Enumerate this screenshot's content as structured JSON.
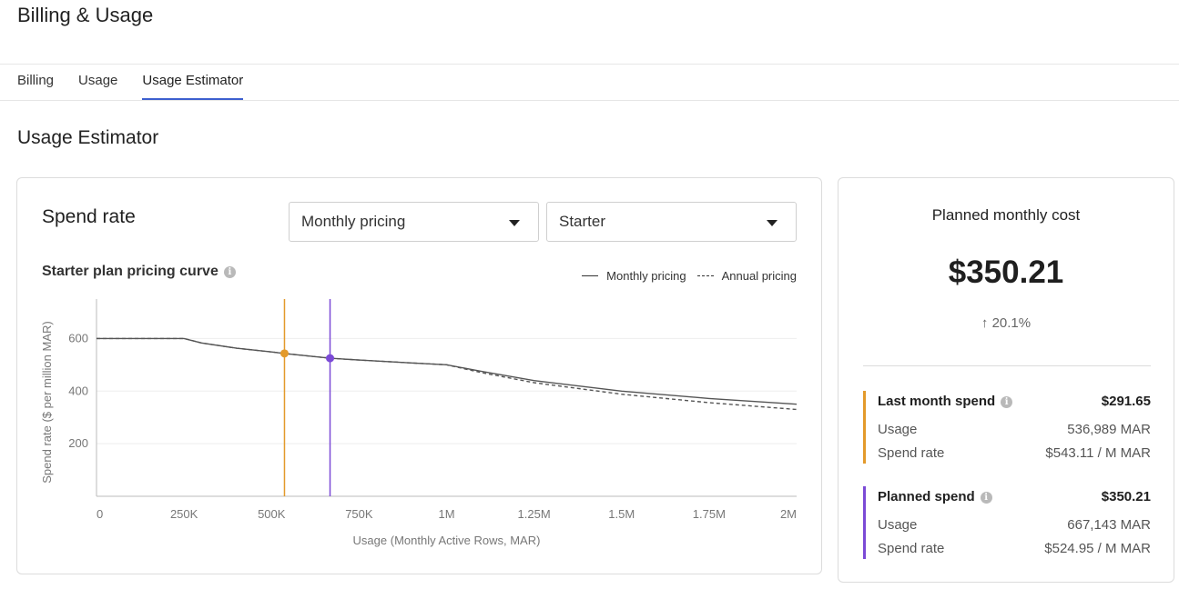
{
  "page": {
    "title": "Billing & Usage"
  },
  "tabs": [
    {
      "label": "Billing"
    },
    {
      "label": "Usage"
    },
    {
      "label": "Usage Estimator"
    }
  ],
  "section": {
    "title": "Usage Estimator"
  },
  "spend_rate": {
    "title": "Spend rate",
    "pricing_select": {
      "value": "Monthly pricing"
    },
    "plan_select": {
      "value": "Starter"
    },
    "curve_title": "Starter plan pricing curve",
    "info_glyph": "i"
  },
  "chart_data": {
    "type": "line",
    "xlabel": "Usage (Monthly Active Rows, MAR)",
    "ylabel": "Spend rate ($ per million MAR)",
    "xlim": [
      0,
      2000000
    ],
    "ylim": [
      0,
      750
    ],
    "x_ticks": [
      {
        "value": 0,
        "label": "0"
      },
      {
        "value": 250000,
        "label": "250K"
      },
      {
        "value": 500000,
        "label": "500K"
      },
      {
        "value": 750000,
        "label": "750K"
      },
      {
        "value": 1000000,
        "label": "1M"
      },
      {
        "value": 1250000,
        "label": "1.25M"
      },
      {
        "value": 1500000,
        "label": "1.5M"
      },
      {
        "value": 1750000,
        "label": "1.75M"
      },
      {
        "value": 2000000,
        "label": "2M"
      }
    ],
    "y_ticks": [
      {
        "value": 200,
        "label": "200"
      },
      {
        "value": 400,
        "label": "400"
      },
      {
        "value": 600,
        "label": "600"
      }
    ],
    "grid": true,
    "legend": "top-right",
    "series": [
      {
        "name": "Monthly pricing",
        "style": "solid",
        "color": "#555555",
        "x": [
          0,
          250000,
          300000,
          400000,
          500000,
          537000,
          667000,
          750000,
          900000,
          1000000,
          1100000,
          1250000,
          1500000,
          1750000,
          2000000
        ],
        "y": [
          600,
          600,
          583,
          563,
          549,
          543,
          525,
          518,
          507,
          500,
          475,
          440,
          400,
          372,
          350
        ]
      },
      {
        "name": "Annual pricing",
        "style": "dashed",
        "color": "#555555",
        "x": [
          0,
          250000,
          300000,
          400000,
          500000,
          537000,
          667000,
          750000,
          900000,
          1000000,
          1100000,
          1250000,
          1500000,
          1750000,
          2000000
        ],
        "y": [
          600,
          600,
          583,
          563,
          549,
          543,
          525,
          518,
          507,
          500,
          470,
          432,
          388,
          356,
          330
        ]
      }
    ],
    "markers": [
      {
        "name": "Last month",
        "x": 536989,
        "y": 543.11,
        "color": "#e39a2b"
      },
      {
        "name": "Planned",
        "x": 667143,
        "y": 524.95,
        "color": "#7b4ad6"
      }
    ]
  },
  "cost": {
    "title": "Planned monthly cost",
    "value": "$350.21",
    "change": "20.1%",
    "arrow": "↑"
  },
  "last_month": {
    "label": "Last month spend",
    "total": "$291.65",
    "usage_label": "Usage",
    "usage_value": "536,989 MAR",
    "rate_label": "Spend rate",
    "rate_value": "$543.11 / M MAR",
    "color": "#e39a2b"
  },
  "planned": {
    "label": "Planned spend",
    "total": "$350.21",
    "usage_label": "Usage",
    "usage_value": "667,143 MAR",
    "rate_label": "Spend rate",
    "rate_value": "$524.95 / M MAR",
    "color": "#7b4ad6"
  }
}
